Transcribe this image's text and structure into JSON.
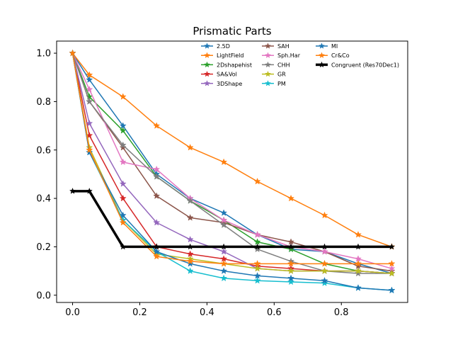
{
  "chart_data": {
    "type": "line",
    "title": "Prismatic Parts",
    "xlabel": "",
    "ylabel": "",
    "xlim": [
      -0.0475,
      0.9975
    ],
    "ylim": [
      -0.03,
      1.05
    ],
    "xticks": [
      0.0,
      0.2,
      0.4,
      0.6,
      0.8
    ],
    "xtick_labels": [
      "0.0",
      "0.2",
      "0.4",
      "0.6",
      "0.8"
    ],
    "yticks": [
      0.0,
      0.2,
      0.4,
      0.6,
      0.8,
      1.0
    ],
    "ytick_labels": [
      "0.0",
      "0.2",
      "0.4",
      "0.6",
      "0.8",
      "1.0"
    ],
    "grid": false,
    "legend_position": "top-right",
    "marker": "star",
    "x": [
      0.0,
      0.05,
      0.15,
      0.25,
      0.35,
      0.45,
      0.55,
      0.65,
      0.75,
      0.85,
      0.95
    ],
    "series": [
      {
        "name": "2.5D",
        "color": "#1f77b4",
        "values": [
          1.0,
          0.89,
          0.7,
          0.5,
          0.4,
          0.34,
          0.25,
          0.19,
          0.18,
          0.13,
          0.09
        ]
      },
      {
        "name": "LightField",
        "color": "#ff7f0e",
        "values": [
          1.0,
          0.91,
          0.82,
          0.7,
          0.61,
          0.55,
          0.47,
          0.4,
          0.33,
          0.25,
          0.2
        ]
      },
      {
        "name": "2Dshapehist",
        "color": "#2ca02c",
        "values": [
          1.0,
          0.82,
          0.68,
          0.49,
          0.39,
          0.31,
          0.22,
          0.19,
          0.13,
          0.1,
          0.09
        ]
      },
      {
        "name": "SA&Vol",
        "color": "#d62728",
        "values": [
          1.0,
          0.66,
          0.4,
          0.2,
          0.17,
          0.15,
          0.12,
          0.11,
          0.1,
          0.1,
          0.09
        ]
      },
      {
        "name": "3DShape",
        "color": "#9467bd",
        "values": [
          1.0,
          0.71,
          0.46,
          0.3,
          0.23,
          0.18,
          0.11,
          0.1,
          0.1,
          0.1,
          0.09
        ]
      },
      {
        "name": "SAH",
        "color": "#8c564b",
        "values": [
          1.0,
          0.8,
          0.61,
          0.41,
          0.32,
          0.3,
          0.25,
          0.22,
          0.18,
          0.12,
          0.1
        ]
      },
      {
        "name": "Sph.Har",
        "color": "#e377c2",
        "values": [
          1.0,
          0.85,
          0.55,
          0.52,
          0.4,
          0.31,
          0.25,
          0.2,
          0.18,
          0.15,
          0.11
        ]
      },
      {
        "name": "CHH",
        "color": "#7f7f7f",
        "values": [
          1.0,
          0.8,
          0.62,
          0.49,
          0.39,
          0.29,
          0.19,
          0.14,
          0.1,
          0.09,
          0.09
        ]
      },
      {
        "name": "GR",
        "color": "#bcbd22",
        "values": [
          1.0,
          0.61,
          0.31,
          0.17,
          0.15,
          0.13,
          0.11,
          0.1,
          0.1,
          0.1,
          0.09
        ]
      },
      {
        "name": "PM",
        "color": "#17becf",
        "values": [
          1.0,
          0.59,
          0.31,
          0.18,
          0.1,
          0.07,
          0.06,
          0.055,
          0.05,
          0.03,
          0.02
        ]
      },
      {
        "name": "MI",
        "color": "#1f77b4",
        "values": [
          1.0,
          0.59,
          0.33,
          0.18,
          0.13,
          0.1,
          0.08,
          0.07,
          0.06,
          0.03,
          0.02
        ]
      },
      {
        "name": "Cr&Co",
        "color": "#ff7f0e",
        "values": [
          1.0,
          0.6,
          0.3,
          0.16,
          0.14,
          0.13,
          0.13,
          0.13,
          0.13,
          0.13,
          0.13
        ]
      },
      {
        "name": "Congruent (Res70Dec1)",
        "color": "#000000",
        "thick": true,
        "values": [
          0.43,
          0.43,
          0.2,
          0.2,
          0.2,
          0.2,
          0.2,
          0.2,
          0.2,
          0.2,
          0.2
        ]
      }
    ]
  }
}
